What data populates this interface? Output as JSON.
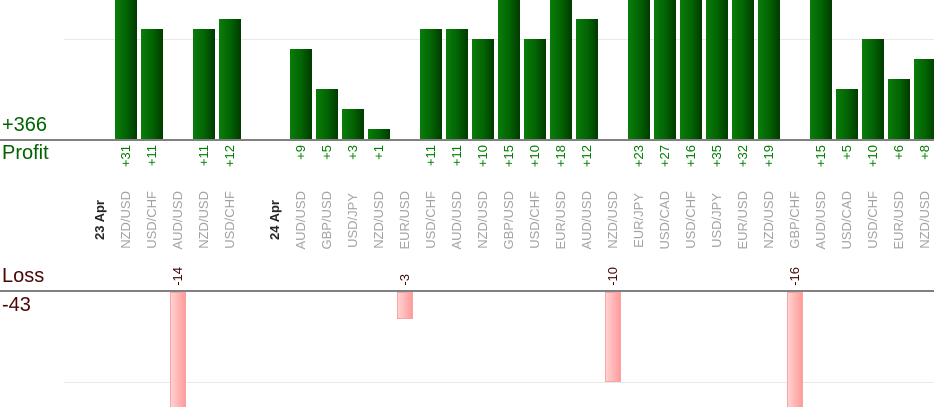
{
  "chart_data": {
    "type": "bar",
    "description": "Per-trade profit (green, top) and loss (pink, bottom) bars by currency pair, grouped by date",
    "profit": {
      "total": "+366",
      "label": "Profit",
      "gridline_value": 10,
      "axis_clipped_above": 14
    },
    "loss": {
      "label": "Loss",
      "total": "-43",
      "gridline_value": -10
    },
    "columns": [
      {
        "kind": "date",
        "label": "23 Apr"
      },
      {
        "kind": "pair",
        "label": "NZD/USD",
        "value": 31
      },
      {
        "kind": "pair",
        "label": "USD/CHF",
        "value": 11
      },
      {
        "kind": "pair",
        "label": "AUD/USD",
        "value": -14
      },
      {
        "kind": "pair",
        "label": "NZD/USD",
        "value": 11
      },
      {
        "kind": "pair",
        "label": "USD/CHF",
        "value": 12
      },
      {
        "kind": "date",
        "label": "24 Apr"
      },
      {
        "kind": "pair",
        "label": "AUD/USD",
        "value": 9
      },
      {
        "kind": "pair",
        "label": "GBP/USD",
        "value": 5
      },
      {
        "kind": "pair",
        "label": "USD/JPY",
        "value": 3
      },
      {
        "kind": "pair",
        "label": "NZD/USD",
        "value": 1
      },
      {
        "kind": "pair",
        "label": "EUR/USD",
        "value": -3
      },
      {
        "kind": "pair",
        "label": "USD/CHF",
        "value": 11
      },
      {
        "kind": "pair",
        "label": "AUD/USD",
        "value": 11
      },
      {
        "kind": "pair",
        "label": "NZD/USD",
        "value": 10
      },
      {
        "kind": "pair",
        "label": "GBP/USD",
        "value": 15
      },
      {
        "kind": "pair",
        "label": "USD/CHF",
        "value": 10
      },
      {
        "kind": "pair",
        "label": "EUR/USD",
        "value": 18
      },
      {
        "kind": "pair",
        "label": "AUD/USD",
        "value": 12
      },
      {
        "kind": "pair",
        "label": "NZD/USD",
        "value": -10
      },
      {
        "kind": "pair",
        "label": "EUR/JPY",
        "value": 23
      },
      {
        "kind": "pair",
        "label": "USD/CAD",
        "value": 27
      },
      {
        "kind": "pair",
        "label": "USD/CHF",
        "value": 16
      },
      {
        "kind": "pair",
        "label": "USD/JPY",
        "value": 35
      },
      {
        "kind": "pair",
        "label": "EUR/USD",
        "value": 32
      },
      {
        "kind": "pair",
        "label": "NZD/USD",
        "value": 19
      },
      {
        "kind": "pair",
        "label": "GBP/CHF",
        "value": -16
      },
      {
        "kind": "pair",
        "label": "AUD/USD",
        "value": 15
      },
      {
        "kind": "pair",
        "label": "USD/CAD",
        "value": 5
      },
      {
        "kind": "pair",
        "label": "USD/CHF",
        "value": 10
      },
      {
        "kind": "pair",
        "label": "EUR/USD",
        "value": 6
      },
      {
        "kind": "pair",
        "label": "NZD/USD",
        "value": 8
      }
    ],
    "colors": {
      "profit_text": "#006400",
      "profit_value_text": "#007c00",
      "green_bar_light": "#0a7d0a",
      "green_bar_mid": "#026202",
      "green_bar_dark": "#013a01",
      "loss_text": "#4b0505",
      "loss_value_text": "#400808",
      "pink_bar_light": "#ffd2d2",
      "pink_bar_dark": "#ff9b9b",
      "pink_bar_border": "#f9a4a4",
      "pair_label": "#a3a3a3",
      "date_label": "#262626",
      "axis_line": "#808080",
      "gridline": "#e9e9e9"
    }
  }
}
